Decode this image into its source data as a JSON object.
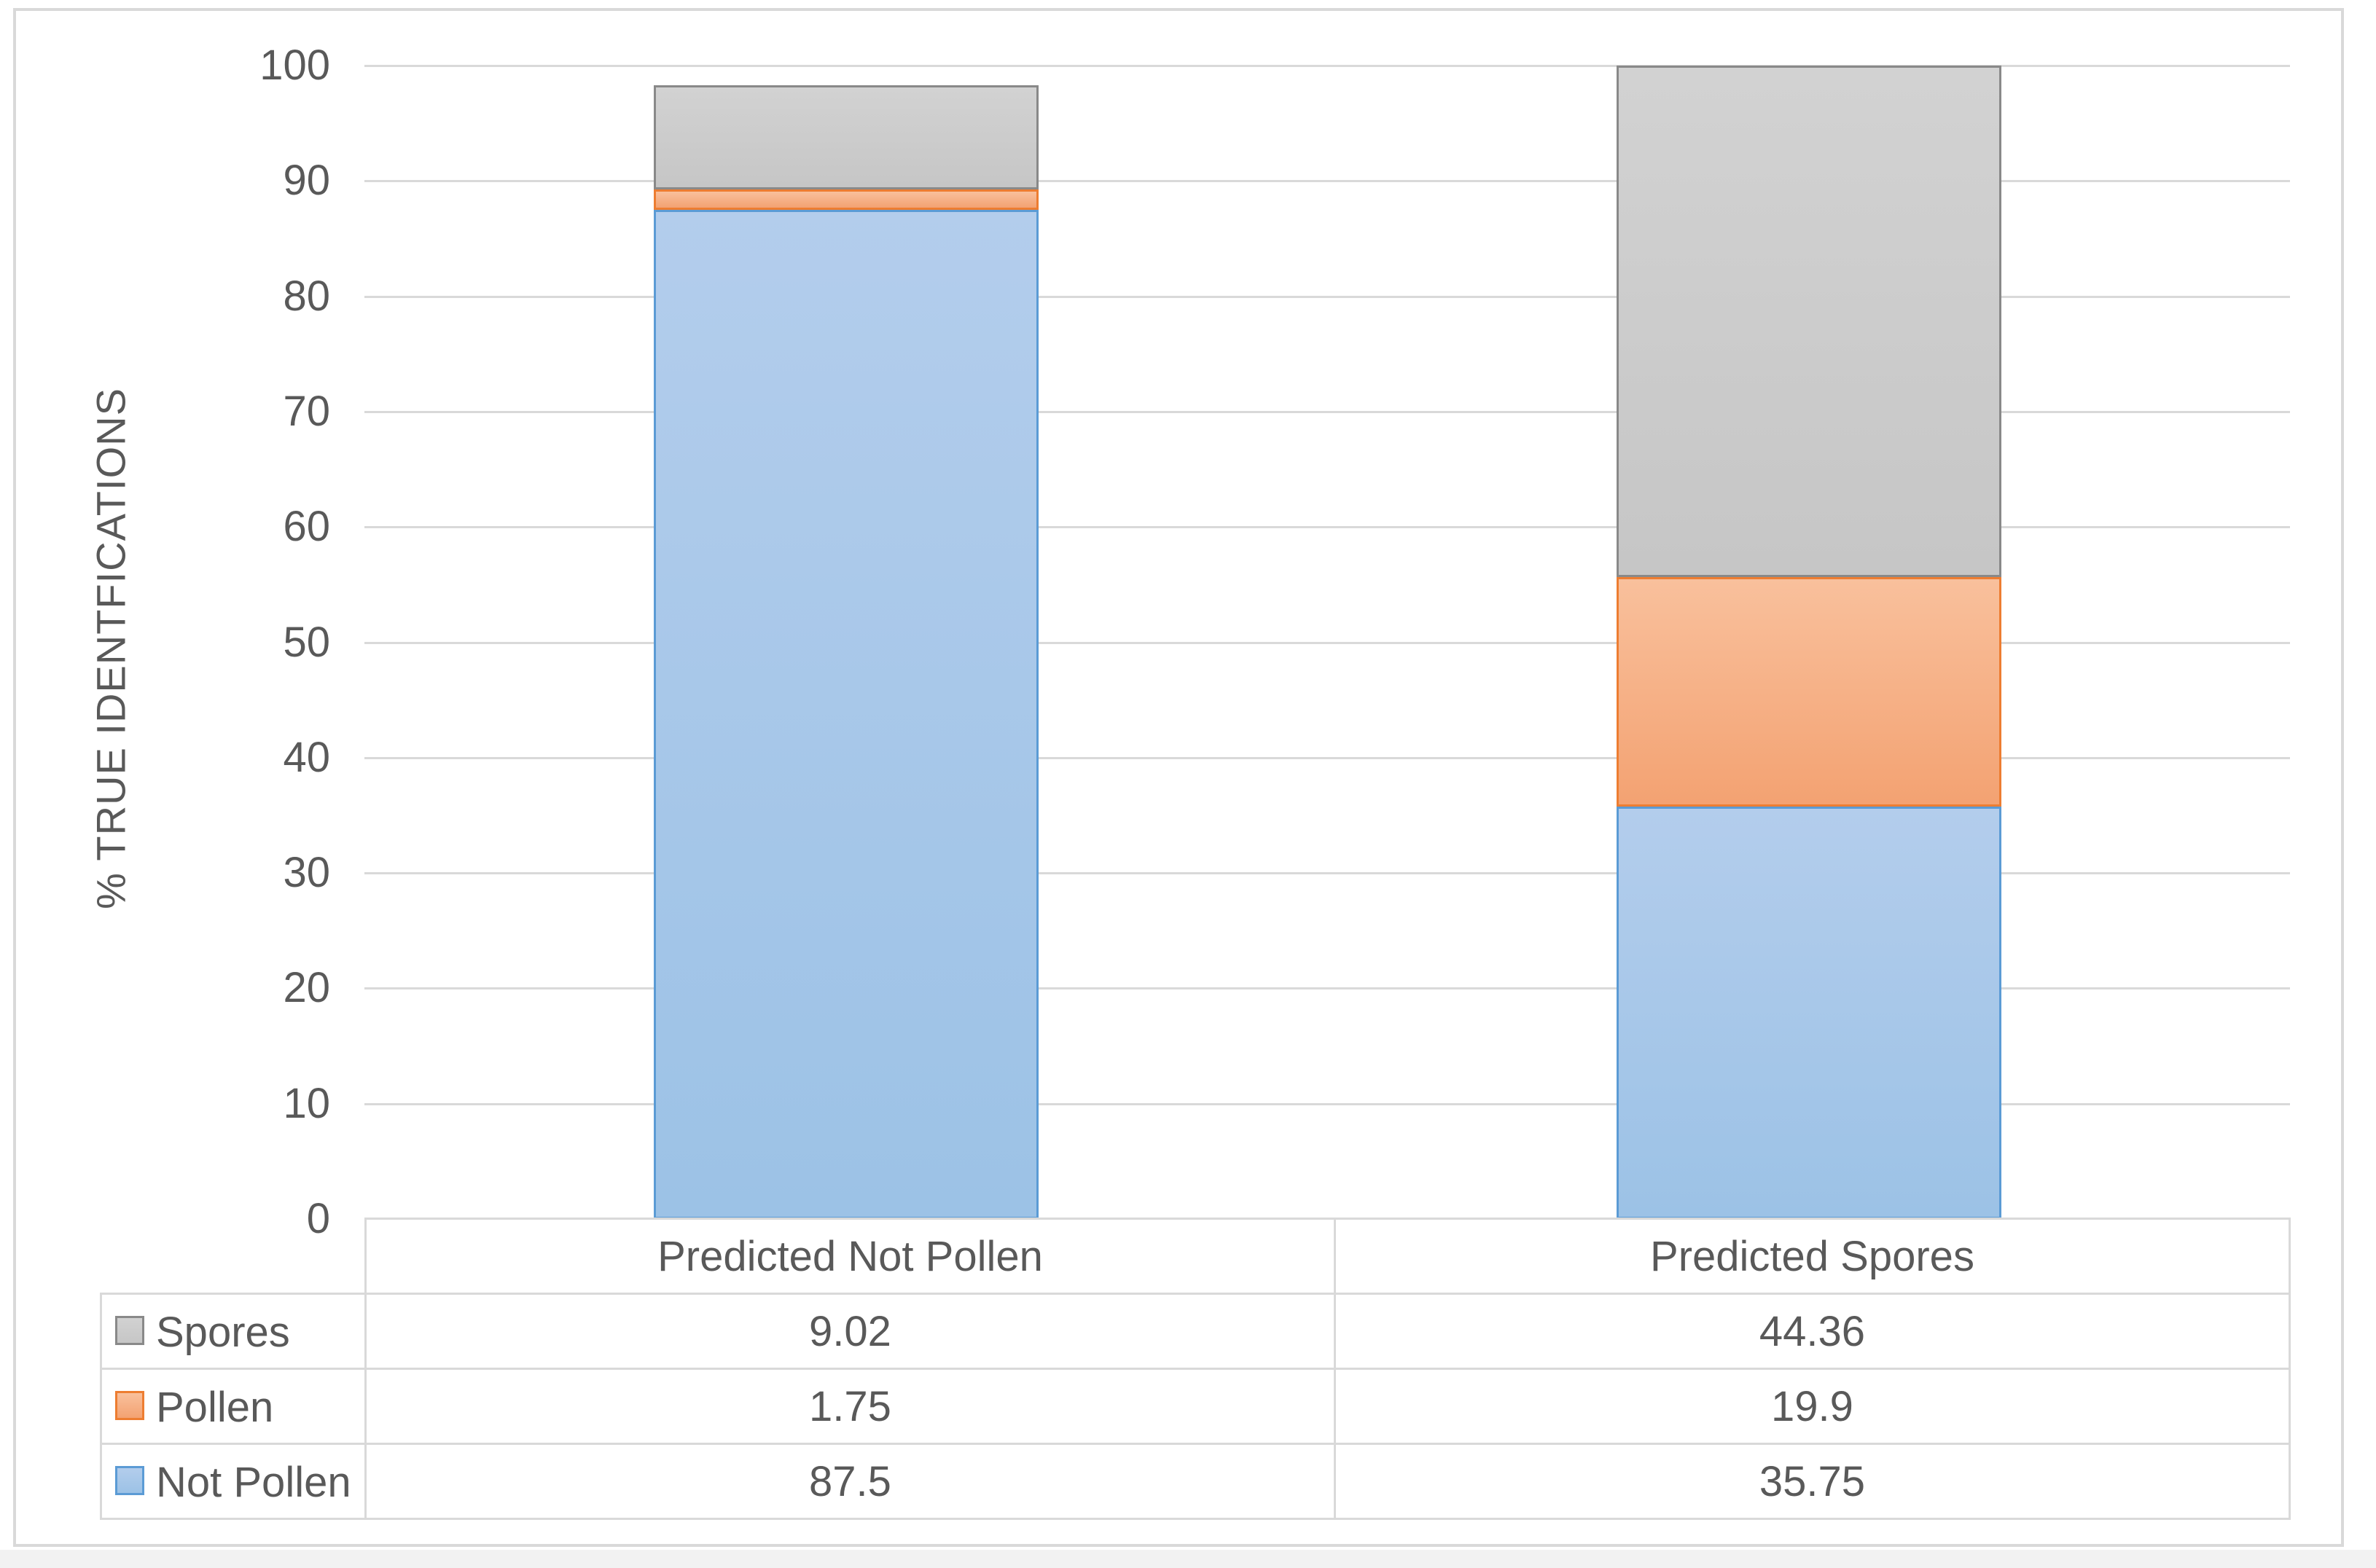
{
  "chart_data": {
    "type": "bar",
    "stacked": true,
    "orientation": "vertical",
    "title": "",
    "xlabel": "",
    "ylabel": "% TRUE IDENTFICATIONS",
    "ylim": [
      0,
      100
    ],
    "ytick_step": 10,
    "ytick_labels": [
      "0",
      "10",
      "20",
      "30",
      "40",
      "50",
      "60",
      "70",
      "80",
      "90",
      "100"
    ],
    "grid": true,
    "gap_width_percent": 150,
    "categories": [
      "Predicted Not Pollen",
      "Predicted Spores"
    ],
    "series": [
      {
        "name": "Not Pollen",
        "values": [
          87.5,
          35.75
        ],
        "color_top": "#b3cdec",
        "color": "#9cc2e6",
        "border_color": "#5b9bd5"
      },
      {
        "name": "Pollen",
        "values": [
          1.75,
          19.9
        ],
        "color_top": "#f9c09c",
        "color": "#f3a272",
        "border_color": "#ed7d31"
      },
      {
        "name": "Spores",
        "values": [
          9.02,
          44.36
        ],
        "color_top": "#d2d2d2",
        "color": "#c6c6c6",
        "border_color": "#898989"
      }
    ],
    "legend_position": "data-table-left-column"
  },
  "data_table": {
    "column_headers": [
      "Predicted Not Pollen",
      "Predicted Spores"
    ],
    "rows": [
      {
        "label": "Spores",
        "values": [
          "9.02",
          "44.36"
        ]
      },
      {
        "label": "Pollen",
        "values": [
          "1.75",
          "19.9"
        ]
      },
      {
        "label": "Not Pollen",
        "values": [
          "87.5",
          "35.75"
        ]
      }
    ]
  },
  "colors": {
    "grid": "#d9d9d9",
    "frame": "#d9d9d9",
    "text": "#595959",
    "background": "#ffffff"
  }
}
